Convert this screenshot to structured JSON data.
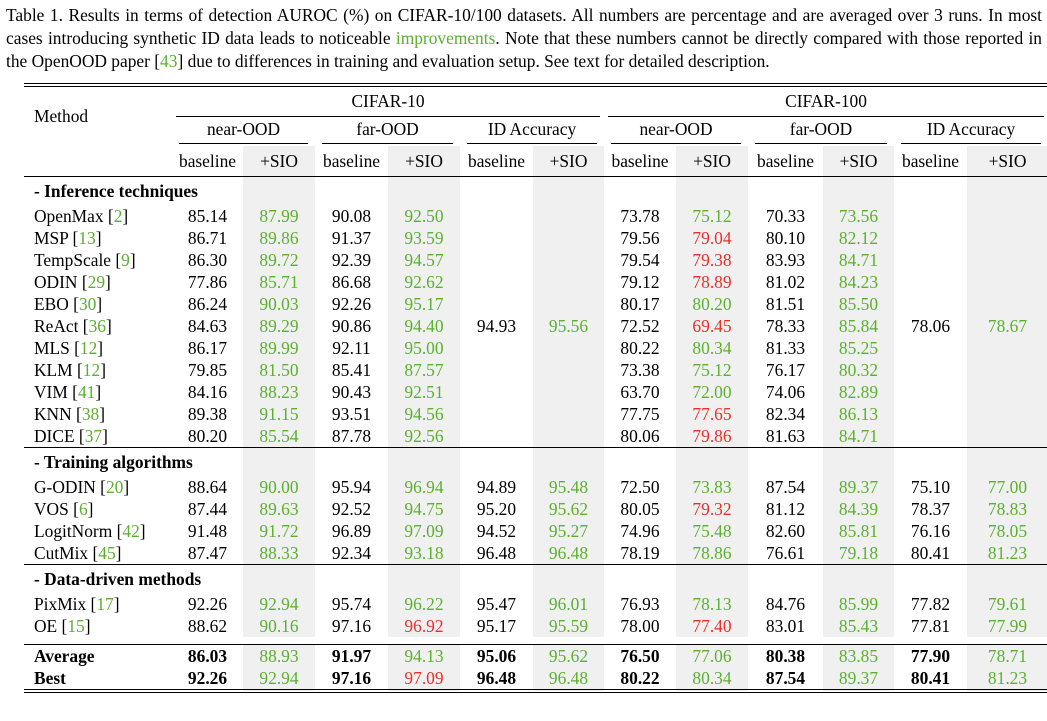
{
  "caption": {
    "part1": "Table 1. Results in terms of detection AUROC (%) on CIFAR-10/100 datasets. All numbers are percentage and are averaged over 3 runs. In most cases introducing synthetic ID data leads to noticeable ",
    "highlight": "improvements",
    "part2": ". Note that these numbers cannot be directly compared with those reported in the OpenOOD paper [",
    "ref": "43",
    "part3": "] due to differences in training and evaluation setup. See text for detailed description."
  },
  "header": {
    "method": "Method",
    "datasets": [
      "CIFAR-10",
      "CIFAR-100"
    ],
    "groups": [
      "near-OOD",
      "far-OOD",
      "ID Accuracy",
      "near-OOD",
      "far-OOD",
      "ID Accuracy"
    ],
    "sub": [
      "baseline",
      "+SIO",
      "baseline",
      "+SIO",
      "baseline",
      "+SIO",
      "baseline",
      "+SIO",
      "baseline",
      "+SIO",
      "baseline",
      "+SIO"
    ]
  },
  "sections": {
    "inference": "- Inference techniques",
    "training": "- Training algorithms",
    "data": "- Data-driven methods"
  },
  "shared_id_acc": {
    "c10_baseline": "94.93",
    "c10_sio": "95.56",
    "c100_baseline": "78.06",
    "c100_sio": "78.67"
  },
  "rows": {
    "openmax": {
      "name": "OpenMax ",
      "ref": "2",
      "v": [
        "85.14",
        "87.99",
        "90.08",
        "92.50",
        "73.78",
        "75.12",
        "70.33",
        "73.56"
      ]
    },
    "msp": {
      "name": "MSP ",
      "ref": "13",
      "v": [
        "86.71",
        "89.86",
        "91.37",
        "93.59",
        "79.56",
        "79.04",
        "80.10",
        "82.12"
      ]
    },
    "tempscale": {
      "name": "TempScale ",
      "ref": "9",
      "v": [
        "86.30",
        "89.72",
        "92.39",
        "94.57",
        "79.54",
        "79.38",
        "83.93",
        "84.71"
      ]
    },
    "odin": {
      "name": "ODIN ",
      "ref": "29",
      "v": [
        "77.86",
        "85.71",
        "86.68",
        "92.62",
        "79.12",
        "78.89",
        "81.02",
        "84.23"
      ]
    },
    "ebo": {
      "name": "EBO ",
      "ref": "30",
      "v": [
        "86.24",
        "90.03",
        "92.26",
        "95.17",
        "80.17",
        "80.20",
        "81.51",
        "85.50"
      ]
    },
    "react": {
      "name": "ReAct ",
      "ref": "36",
      "v": [
        "84.63",
        "89.29",
        "90.86",
        "94.40",
        "72.52",
        "69.45",
        "78.33",
        "85.84"
      ]
    },
    "mls": {
      "name": "MLS ",
      "ref": "12",
      "v": [
        "86.17",
        "89.99",
        "92.11",
        "95.00",
        "80.22",
        "80.34",
        "81.33",
        "85.25"
      ]
    },
    "klm": {
      "name": "KLM ",
      "ref": "12",
      "v": [
        "79.85",
        "81.50",
        "85.41",
        "87.57",
        "73.38",
        "75.12",
        "76.17",
        "80.32"
      ]
    },
    "vim": {
      "name": "VIM ",
      "ref": "41",
      "v": [
        "84.16",
        "88.23",
        "90.43",
        "92.51",
        "63.70",
        "72.00",
        "74.06",
        "82.89"
      ]
    },
    "knn": {
      "name": "KNN ",
      "ref": "38",
      "v": [
        "89.38",
        "91.15",
        "93.51",
        "94.56",
        "77.75",
        "77.65",
        "82.34",
        "86.13"
      ]
    },
    "dice": {
      "name": "DICE ",
      "ref": "37",
      "v": [
        "80.20",
        "85.54",
        "87.78",
        "92.56",
        "80.06",
        "79.86",
        "81.63",
        "84.71"
      ]
    },
    "godin": {
      "name": "G-ODIN ",
      "ref": "20",
      "v": [
        "88.64",
        "90.00",
        "95.94",
        "96.94",
        "94.89",
        "95.48",
        "72.50",
        "73.83",
        "87.54",
        "89.37",
        "75.10",
        "77.00"
      ]
    },
    "vos": {
      "name": "VOS ",
      "ref": "6",
      "v": [
        "87.44",
        "89.63",
        "92.52",
        "94.75",
        "95.20",
        "95.62",
        "80.05",
        "79.32",
        "81.12",
        "84.39",
        "78.37",
        "78.83"
      ]
    },
    "logitnorm": {
      "name": "LogitNorm ",
      "ref": "42",
      "v": [
        "91.48",
        "91.72",
        "96.89",
        "97.09",
        "94.52",
        "95.27",
        "74.96",
        "75.48",
        "82.60",
        "85.81",
        "76.16",
        "78.05"
      ]
    },
    "cutmix": {
      "name": "CutMix ",
      "ref": "45",
      "v": [
        "87.47",
        "88.33",
        "92.34",
        "93.18",
        "96.48",
        "96.48",
        "78.19",
        "78.86",
        "76.61",
        "79.18",
        "80.41",
        "81.23"
      ]
    },
    "pixmix": {
      "name": "PixMix ",
      "ref": "17",
      "v": [
        "92.26",
        "92.94",
        "95.74",
        "96.22",
        "95.47",
        "96.01",
        "76.93",
        "78.13",
        "84.76",
        "85.99",
        "77.82",
        "79.61"
      ]
    },
    "oe": {
      "name": "OE ",
      "ref": "15",
      "v": [
        "88.62",
        "90.16",
        "97.16",
        "96.92",
        "95.17",
        "95.59",
        "78.00",
        "77.40",
        "83.01",
        "85.43",
        "77.81",
        "77.99"
      ]
    },
    "average": {
      "name": "Average",
      "v": [
        "86.03",
        "88.93",
        "91.97",
        "94.13",
        "95.06",
        "95.62",
        "76.50",
        "77.06",
        "80.38",
        "83.85",
        "77.90",
        "78.71"
      ]
    },
    "best": {
      "name": "Best",
      "v": [
        "92.26",
        "92.94",
        "97.16",
        "97.09",
        "96.48",
        "96.48",
        "80.22",
        "80.34",
        "87.54",
        "89.37",
        "80.41",
        "81.23"
      ]
    }
  },
  "colors": {
    "improvement": "#5bb12f",
    "degradation": "#e8302b",
    "shade": "#f0f0f0"
  }
}
